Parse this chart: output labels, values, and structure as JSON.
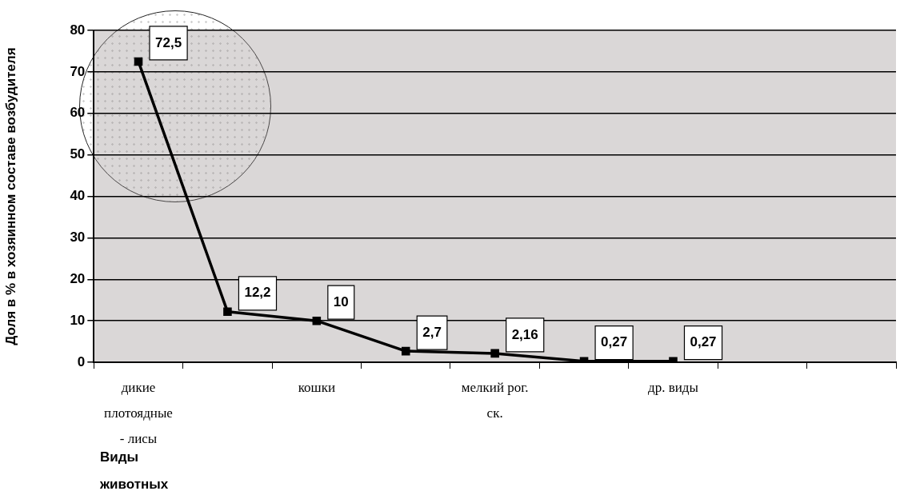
{
  "chart_data": {
    "type": "line",
    "xlabel": "Виды животных",
    "ylabel": "Доля в % в хозяинном составе возбудителя",
    "categories": [
      "дикие плотоядные - лисы",
      null,
      "кошки",
      null,
      "мелкий рог. ск.",
      null,
      "др. виды",
      null,
      null
    ],
    "series": [
      {
        "color": "#000000",
        "values": [
          72.5,
          12.2,
          10,
          2.7,
          2.16,
          0.27,
          0.27,
          null,
          null
        ],
        "value_labels": [
          "72,5",
          "12,2",
          "10",
          "2,7",
          "2,16",
          "0,27",
          "0,27",
          null,
          null
        ]
      }
    ],
    "ylim": [
      0,
      80
    ],
    "yticks": [
      0,
      10,
      20,
      30,
      40,
      50,
      60,
      70,
      80
    ],
    "grid": "y",
    "legend": false,
    "marker": "square",
    "line_style": "solid"
  }
}
